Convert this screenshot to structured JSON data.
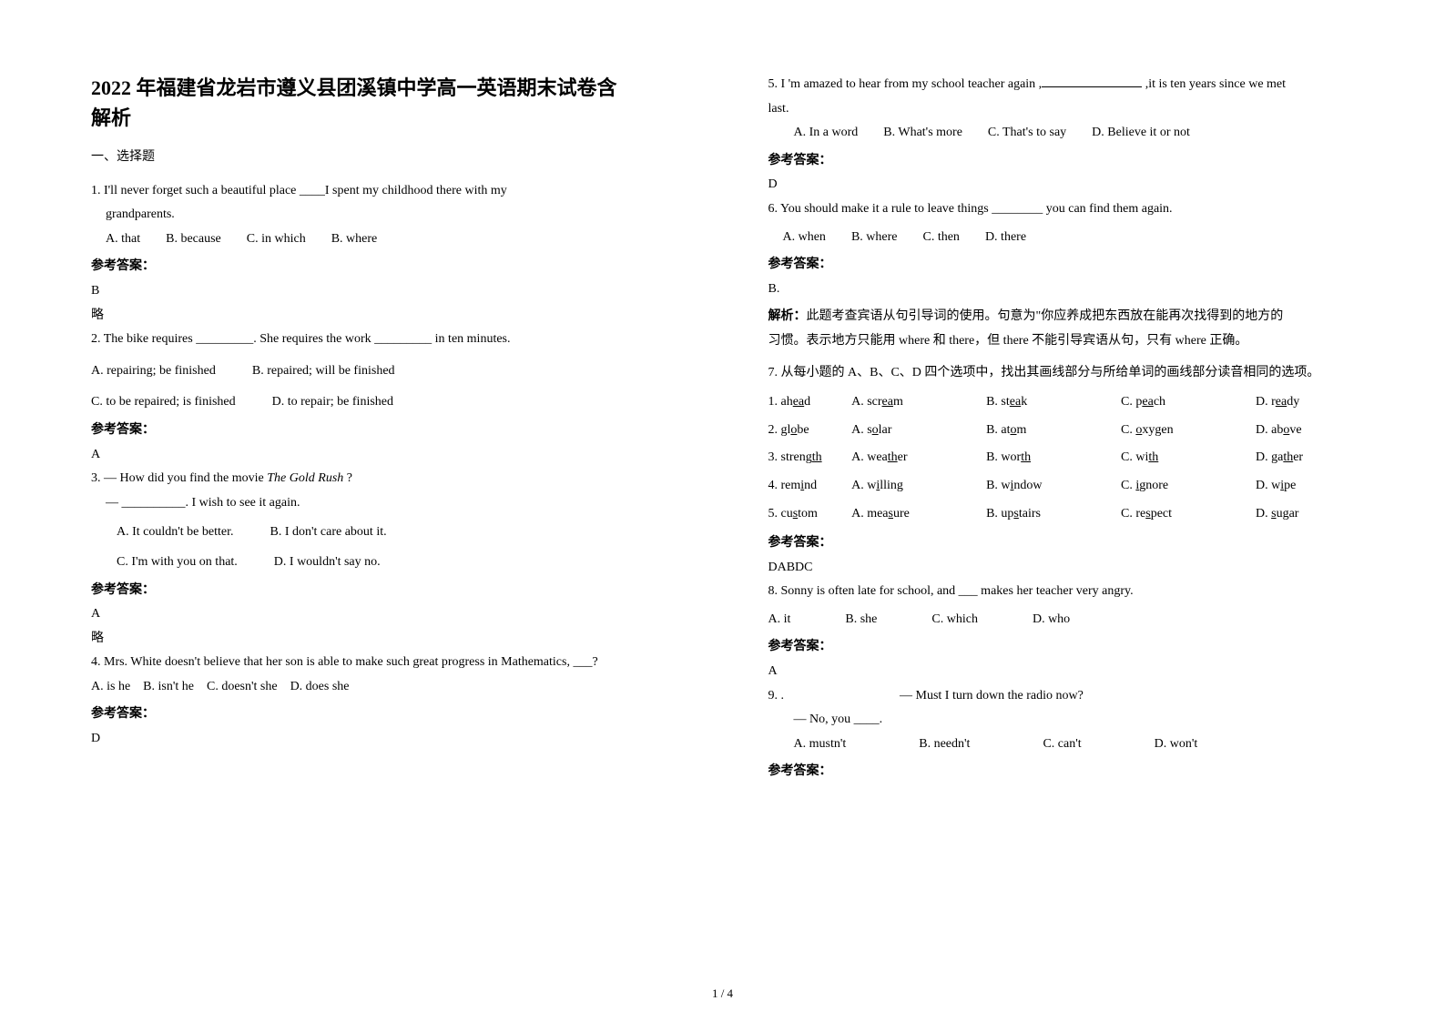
{
  "title_line1": "2022 年福建省龙岩市遵义县团溪镇中学高一英语期末试卷含",
  "title_line2": "解析",
  "section1": "一、选择题",
  "q1": {
    "stem": "1. I'll never forget such a beautiful place ____I spent my childhood there with my",
    "stem2": "grandparents.",
    "a": "A. that",
    "b": "B. because",
    "c": "C. in which",
    "d": "B. where",
    "ans_label": "参考答案：",
    "ans": "B",
    "note": "略"
  },
  "q2": {
    "stem": "2. The bike requires _________. She requires the work _________ in ten minutes.",
    "a": "A. repairing; be finished",
    "b": "B. repaired; will be finished",
    "c": "C. to be repaired; is finished",
    "d": "D. to repair; be finished",
    "ans_label": "参考答案：",
    "ans": "A"
  },
  "q3": {
    "stem1": "3. — How did you find the movie ",
    "stem_it": "The Gold Rush",
    "stem_q": " ?",
    "stem2": "— __________. I wish to see it again.",
    "a": "A. It couldn't be better.",
    "b": "B. I don't care about it.",
    "c": "C. I'm with you on that.",
    "d": "D. I wouldn't say no.",
    "ans_label": "参考答案：",
    "ans": "A",
    "note": "略"
  },
  "q4": {
    "stem": "4. Mrs. White doesn't believe that her son is able to make such great progress in Mathematics, ___?",
    "a": "A. is he",
    "b": "B. isn't he",
    "c": "C. doesn't she",
    "d": "D. does she",
    "ans_label": "参考答案：",
    "ans": "D"
  },
  "q5": {
    "stem1": "5. I 'm amazed to hear from my school teacher again ,",
    "stem2": " ,it is ten years since we met",
    "stem3": "last.",
    "a": "A. In a word",
    "b": "B. What's more",
    "c": "C. That's to say",
    "d": "D. Believe it or not",
    "ans_label": "参考答案：",
    "ans": "D"
  },
  "q6": {
    "stem": "6. You should make it a rule to leave things ________ you can find them again.",
    "a": "A. when",
    "b": "B. where",
    "c": "C. then",
    "d": "D. there",
    "ans_label": "参考答案：",
    "ans": "B.",
    "jx_label": "解析：",
    "jx1": "此题考查宾语从句引导词的使用。句意为\"你应养成把东西放在能再次找得到的地方的",
    "jx2": "习惯。表示地方只能用 where 和 there，但 there 不能引导宾语从句，只有 where 正确。"
  },
  "q7": {
    "stem": "7. 从每小题的 A、B、C、D 四个选项中，找出其画线部分与所给单词的画线部分读音相同的选项。",
    "rows": [
      {
        "n": "1. ah",
        "nu": "ea",
        "ne": "d",
        "a": "A. scr",
        "au": "ea",
        "ae": "m",
        "b": "B. st",
        "bu": "ea",
        "be": "k",
        "c": "C. p",
        "cu": "ea",
        "ce": "ch",
        "d": "D. r",
        "du": "ea",
        "de": "dy"
      },
      {
        "n": "2. gl",
        "nu": "o",
        "ne": "be",
        "a": "A. s",
        "au": "o",
        "ae": "lar",
        "b": "B. at",
        "bu": "o",
        "be": "m",
        "c": "C. ",
        "cu": "o",
        "ce": "xygen",
        "d": "D. ab",
        "du": "o",
        "de": "ve"
      },
      {
        "n": "3. streng",
        "nu": "th",
        "ne": "",
        "a": "A. wea",
        "au": "th",
        "ae": "er",
        "b": "B. wor",
        "bu": "th",
        "be": "",
        "c": "C. wi",
        "cu": "th",
        "ce": "",
        "d": "D. ga",
        "du": "th",
        "de": "er"
      },
      {
        "n": "4. rem",
        "nu": "i",
        "ne": "nd",
        "a": "A. w",
        "au": "i",
        "ae": "lling",
        "b": "B. w",
        "bu": "i",
        "be": "ndow",
        "c": "C. ",
        "cu": "i",
        "ce": "gnore",
        "d": "D. w",
        "du": "i",
        "de": "pe"
      },
      {
        "n": "5. cu",
        "nu": "s",
        "ne": "tom",
        "a": "A. mea",
        "au": "s",
        "ae": "ure",
        "b": "B. up",
        "bu": "s",
        "be": "tairs",
        "c": "C. re",
        "cu": "s",
        "ce": "pect",
        "d": "D. ",
        "du": "s",
        "de": "ugar"
      }
    ],
    "ans_label": "参考答案：",
    "ans": "DABDC"
  },
  "q8": {
    "stem": "8. Sonny is often late for school, and ___ makes her teacher very angry.",
    "a": "A. it",
    "b": "B. she",
    "c": "C. which",
    "d": "D. who",
    "ans_label": "参考答案：",
    "ans": "A"
  },
  "q9": {
    "stem1": "9. .",
    "stem1b": "— Must I turn down the radio now?",
    "stem2": "— No, you ____.",
    "a": "A. mustn't",
    "b": "B. needn't",
    "c": "C. can't",
    "d": "D. won't",
    "ans_label": "参考答案："
  },
  "footer": "1 / 4"
}
